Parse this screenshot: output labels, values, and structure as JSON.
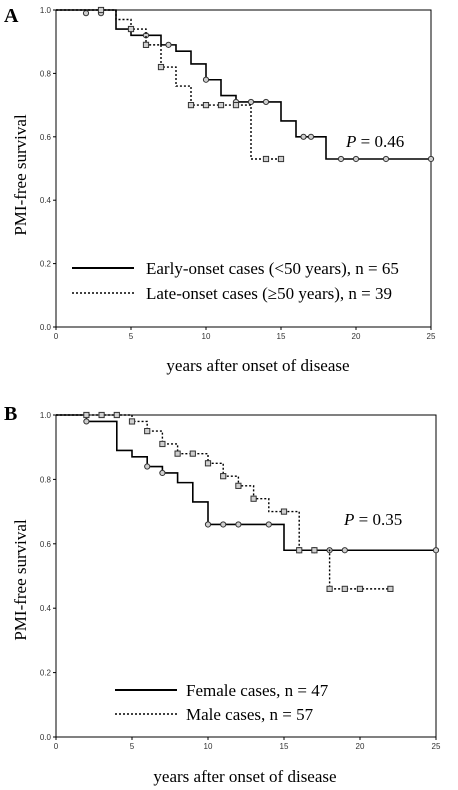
{
  "chart_data": [
    {
      "type": "line",
      "panel": "A",
      "ylabel": "PMI-free survival",
      "xlabel": "years after onset of disease",
      "xlim": [
        0,
        25
      ],
      "ylim": [
        0,
        1.0
      ],
      "x_ticks": [
        "0",
        "5",
        "10",
        "15",
        "20",
        "25"
      ],
      "y_ticks": [
        "0.0",
        "0.2",
        "0.4",
        "0.6",
        "0.8",
        "1.0"
      ],
      "annotation": {
        "italic": "P",
        "rest": " = 0.46"
      },
      "legend_position": "bottom-center",
      "series": [
        {
          "name": "Early-onset cases (<50 years), n = 65",
          "style": "solid",
          "steps": [
            [
              0,
              1.0
            ],
            [
              4,
              0.94
            ],
            [
              5,
              0.92
            ],
            [
              7,
              0.89
            ],
            [
              8,
              0.87
            ],
            [
              9,
              0.83
            ],
            [
              10,
              0.78
            ],
            [
              11,
              0.73
            ],
            [
              12,
              0.71
            ],
            [
              15,
              0.65
            ],
            [
              16,
              0.6
            ],
            [
              18,
              0.53
            ],
            [
              25,
              0.53
            ]
          ],
          "censored": [
            [
              2,
              0.99
            ],
            [
              3,
              0.99
            ],
            [
              6,
              0.92
            ],
            [
              7.5,
              0.89
            ],
            [
              10,
              0.78
            ],
            [
              12,
              0.71
            ],
            [
              13,
              0.71
            ],
            [
              14,
              0.71
            ],
            [
              16.5,
              0.6
            ],
            [
              17,
              0.6
            ],
            [
              19,
              0.53
            ],
            [
              20,
              0.53
            ],
            [
              22,
              0.53
            ],
            [
              25,
              0.53
            ]
          ]
        },
        {
          "name": "Late-onset cases (≥50 years), n = 39",
          "style": "dotted",
          "steps": [
            [
              0,
              1.0
            ],
            [
              4,
              0.97
            ],
            [
              5,
              0.94
            ],
            [
              6,
              0.89
            ],
            [
              7,
              0.82
            ],
            [
              8,
              0.76
            ],
            [
              9,
              0.7
            ],
            [
              13,
              0.53
            ],
            [
              15,
              0.53
            ]
          ],
          "censored": [
            [
              3,
              1.0
            ],
            [
              5,
              0.94
            ],
            [
              6,
              0.89
            ],
            [
              7,
              0.82
            ],
            [
              9,
              0.7
            ],
            [
              10,
              0.7
            ],
            [
              11,
              0.7
            ],
            [
              12,
              0.7
            ],
            [
              14,
              0.53
            ],
            [
              15,
              0.53
            ]
          ]
        }
      ]
    },
    {
      "type": "line",
      "panel": "B",
      "ylabel": "PMI-free survival",
      "xlabel": "years after onset of disease",
      "xlim": [
        0,
        25
      ],
      "ylim": [
        0,
        1.0
      ],
      "x_ticks": [
        "0",
        "5",
        "10",
        "15",
        "20",
        "25"
      ],
      "y_ticks": [
        "0.0",
        "0.2",
        "0.4",
        "0.6",
        "0.8",
        "1.0"
      ],
      "annotation": {
        "italic": "P",
        "rest": " = 0.35"
      },
      "legend_position": "bottom-center",
      "series": [
        {
          "name": "Female cases, n = 47",
          "style": "solid",
          "steps": [
            [
              0,
              1.0
            ],
            [
              2,
              0.98
            ],
            [
              4,
              0.89
            ],
            [
              5,
              0.87
            ],
            [
              6,
              0.84
            ],
            [
              7,
              0.82
            ],
            [
              8,
              0.79
            ],
            [
              9,
              0.73
            ],
            [
              10,
              0.66
            ],
            [
              15,
              0.58
            ],
            [
              25,
              0.58
            ]
          ],
          "censored": [
            [
              2,
              0.98
            ],
            [
              6,
              0.84
            ],
            [
              7,
              0.82
            ],
            [
              10,
              0.66
            ],
            [
              11,
              0.66
            ],
            [
              12,
              0.66
            ],
            [
              14,
              0.66
            ],
            [
              16,
              0.58
            ],
            [
              17,
              0.58
            ],
            [
              18,
              0.58
            ],
            [
              19,
              0.58
            ],
            [
              25,
              0.58
            ]
          ]
        },
        {
          "name": "Male cases, n = 57",
          "style": "dotted",
          "steps": [
            [
              0,
              1.0
            ],
            [
              5,
              0.98
            ],
            [
              6,
              0.95
            ],
            [
              7,
              0.91
            ],
            [
              8,
              0.88
            ],
            [
              10,
              0.85
            ],
            [
              11,
              0.81
            ],
            [
              12,
              0.78
            ],
            [
              13,
              0.74
            ],
            [
              14,
              0.7
            ],
            [
              16,
              0.58
            ],
            [
              18,
              0.46
            ],
            [
              22,
              0.46
            ]
          ],
          "censored": [
            [
              2,
              1.0
            ],
            [
              3,
              1.0
            ],
            [
              4,
              1.0
            ],
            [
              5,
              0.98
            ],
            [
              6,
              0.95
            ],
            [
              7,
              0.91
            ],
            [
              8,
              0.88
            ],
            [
              9,
              0.88
            ],
            [
              10,
              0.85
            ],
            [
              11,
              0.81
            ],
            [
              12,
              0.78
            ],
            [
              13,
              0.74
            ],
            [
              15,
              0.7
            ],
            [
              16,
              0.58
            ],
            [
              17,
              0.58
            ],
            [
              18,
              0.46
            ],
            [
              19,
              0.46
            ],
            [
              20,
              0.46
            ],
            [
              22,
              0.46
            ]
          ]
        }
      ]
    }
  ]
}
